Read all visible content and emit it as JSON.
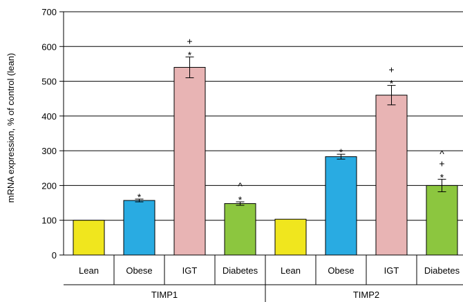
{
  "chart_data": {
    "type": "bar",
    "ylabel": "mRNA expression, % of control (lean)",
    "ylim": [
      0,
      700
    ],
    "yticks": [
      0,
      100,
      200,
      300,
      400,
      500,
      600,
      700
    ],
    "grid": true,
    "groups": [
      {
        "name": "TIMP1",
        "categories": [
          "Lean",
          "Obese",
          "IGT",
          "Diabetes"
        ],
        "values": [
          100,
          157,
          540,
          148
        ],
        "errors": [
          0,
          4,
          30,
          5
        ],
        "annotations": [
          [],
          [
            "*"
          ],
          [
            "*",
            "+"
          ],
          [
            "*",
            "^"
          ]
        ]
      },
      {
        "name": "TIMP2",
        "categories": [
          "Lean",
          "Obese",
          "IGT",
          "Diabetes"
        ],
        "values": [
          103,
          283,
          460,
          200
        ],
        "errors": [
          0,
          7,
          28,
          18
        ],
        "annotations": [
          [],
          [
            "*"
          ],
          [
            "*",
            "+"
          ],
          [
            "*",
            "+",
            "^"
          ]
        ]
      }
    ],
    "colors": {
      "Lean": "#f0e61e",
      "Obese": "#29abe2",
      "IGT": "#e8b4b4",
      "Diabetes": "#8cc63f"
    }
  }
}
